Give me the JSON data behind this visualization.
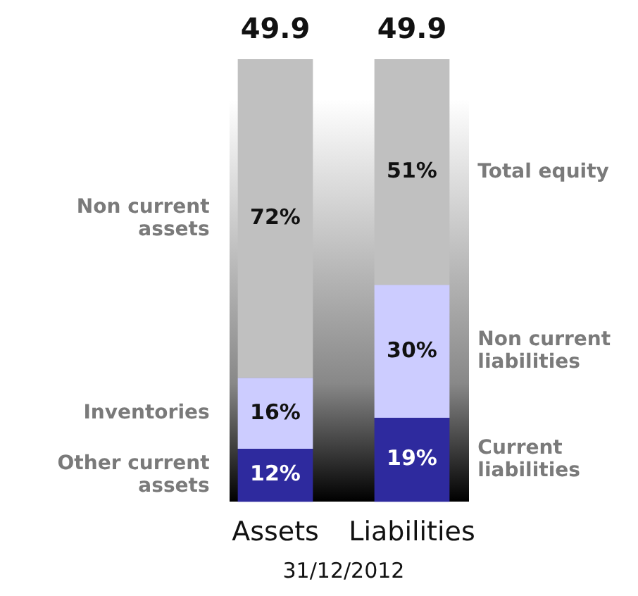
{
  "chart_data": {
    "type": "bar",
    "stacked": true,
    "xlabel": "31/12/2012",
    "categories": [
      "Assets",
      "Liabilities"
    ],
    "series": [
      {
        "name": "Other current assets",
        "color": "#2e2a9e",
        "values": [
          12,
          null
        ],
        "value_labels": [
          "12%",
          null
        ]
      },
      {
        "name": "Inventories",
        "color": "#ccccff",
        "values": [
          16,
          null
        ],
        "value_labels": [
          "16%",
          null
        ]
      },
      {
        "name": "Non current assets",
        "color": "#c0c0c0",
        "values": [
          72,
          null
        ],
        "value_labels": [
          "72%",
          null
        ]
      },
      {
        "name": "Current liabilities",
        "color": "#2e2a9e",
        "values": [
          null,
          19
        ],
        "value_labels": [
          null,
          "19%"
        ]
      },
      {
        "name": "Non current liabilities",
        "color": "#ccccff",
        "values": [
          null,
          30
        ],
        "value_labels": [
          null,
          "30%"
        ]
      },
      {
        "name": "Total equity",
        "color": "#c0c0c0",
        "values": [
          null,
          51
        ],
        "value_labels": [
          null,
          "51%"
        ]
      }
    ],
    "annotations": [
      {
        "text": "49.9",
        "x": "Assets",
        "y": 100
      },
      {
        "text": "49.9",
        "x": "Liabilities",
        "y": 100
      }
    ],
    "ylim": [
      0,
      100
    ],
    "tick_labels": "x",
    "grid": false,
    "legend": false
  }
}
